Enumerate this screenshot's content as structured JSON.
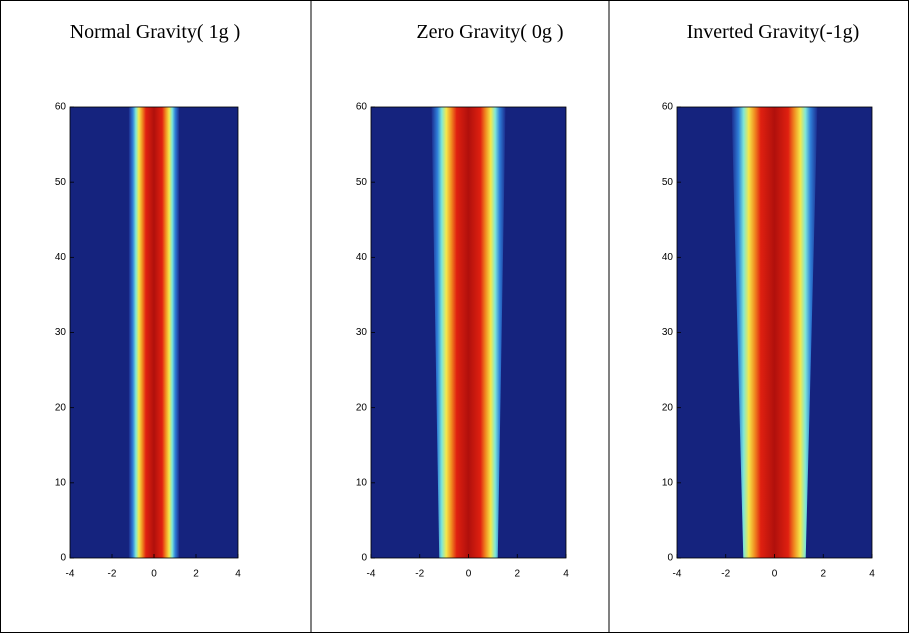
{
  "chart_data": [
    {
      "type": "heatmap",
      "title": "Normal Gravity( 1g )",
      "xlim": [
        -4,
        4
      ],
      "ylim": [
        0,
        60
      ],
      "xticks": [
        -4,
        -2,
        0,
        2,
        4
      ],
      "yticks": [
        0,
        10,
        20,
        30,
        40,
        50,
        60
      ]
    },
    {
      "type": "heatmap",
      "title": "Zero Gravity( 0g )",
      "xlim": [
        -4,
        4
      ],
      "ylim": [
        0,
        60
      ],
      "xticks": [
        -4,
        -2,
        0,
        2,
        4
      ],
      "yticks": [
        0,
        10,
        20,
        30,
        40,
        50,
        60
      ]
    },
    {
      "type": "heatmap",
      "title": "Inverted Gravity(-1g)",
      "xlim": [
        -4,
        4
      ],
      "ylim": [
        0,
        60
      ],
      "xticks": [
        -4,
        -2,
        0,
        2,
        4
      ],
      "yticks": [
        0,
        10,
        20,
        30,
        40,
        50,
        60
      ]
    }
  ]
}
